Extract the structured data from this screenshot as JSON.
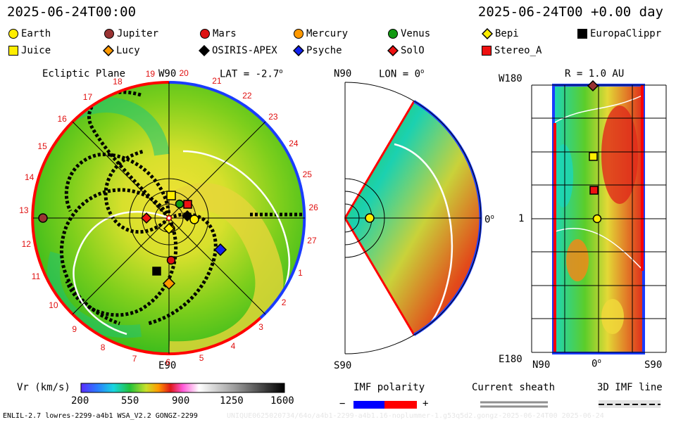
{
  "header": {
    "left_time": "2025-06-24T00:00",
    "right_time": "2025-06-24T00 +0.00 day"
  },
  "legend": [
    {
      "label": "Earth",
      "shape": "circle",
      "color": "#ffee00"
    },
    {
      "label": "Jupiter",
      "shape": "circle",
      "color": "#993333"
    },
    {
      "label": "Mars",
      "shape": "circle",
      "color": "#dd1111"
    },
    {
      "label": "Mercury",
      "shape": "circle",
      "color": "#ff9900"
    },
    {
      "label": "Venus",
      "shape": "circle",
      "color": "#119911"
    },
    {
      "label": "Bepi",
      "shape": "diamond",
      "color": "#ffee00"
    },
    {
      "label": "EuropaClippr",
      "shape": "square",
      "color": "#000000"
    },
    {
      "label": "Juice",
      "shape": "square",
      "color": "#ffee00"
    },
    {
      "label": "Lucy",
      "shape": "diamond",
      "color": "#ff9900"
    },
    {
      "label": "OSIRIS-APEX",
      "shape": "diamond",
      "color": "#000000"
    },
    {
      "label": "Psyche",
      "shape": "diamond",
      "color": "#1122ee"
    },
    {
      "label": "SolO",
      "shape": "diamond",
      "color": "#ee1111"
    },
    {
      "label": "Stereo_A",
      "shape": "square",
      "color": "#ee1111"
    }
  ],
  "panel1": {
    "title": "Ecliptic Plane",
    "top_label": "W90",
    "lat_label": "LAT = -2.7",
    "bottom_label": "E90",
    "ticks_outer": [
      "20",
      "21",
      "22",
      "23",
      "24",
      "25",
      "26",
      "27",
      "1",
      "2",
      "3",
      "4",
      "5",
      "6",
      "7",
      "8",
      "9",
      "10",
      "11",
      "12",
      "13",
      "14",
      "15",
      "16",
      "17",
      "18",
      "19"
    ]
  },
  "panel2": {
    "top_label": "N90",
    "lon_label": "LON = 0",
    "right_label": "0",
    "bottom_label": "S90"
  },
  "panel3": {
    "title": "R = 1.0 AU",
    "top_left": "W180",
    "mid_left": "1",
    "bottom_left": "E180",
    "x_left": "N90",
    "x_mid": "0",
    "x_right": "S90"
  },
  "colorbar": {
    "label": "Vr (km/s)",
    "ticks": [
      "200",
      "550",
      "900",
      "1250",
      "1600"
    ]
  },
  "imf": {
    "label": "IMF polarity",
    "minus": "−",
    "plus": "+",
    "neg_color": "#0000ff",
    "pos_color": "#ff0000"
  },
  "sheath": {
    "label": "Current sheath"
  },
  "imf3d": {
    "label": "3D IMF line"
  },
  "footer": {
    "left": "ENLIL-2.7 lowres-2299-a4b1 WSA_V2.2 GONGZ-2299",
    "right": "UNIQUE0625020734/64o/a4b1-2299-a4b1.16-noplummer-1.g53q5d2.gongz-2025-06-24T00 2025-06-24"
  }
}
